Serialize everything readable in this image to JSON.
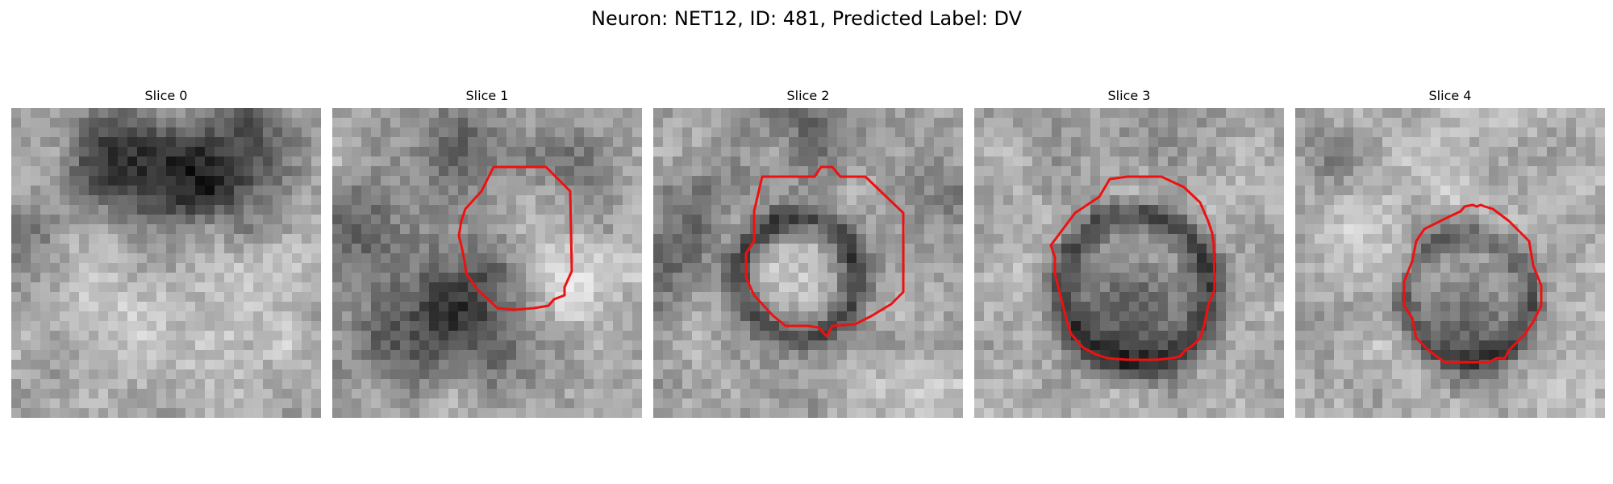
{
  "figure": {
    "title": "Neuron: NET12, ID: 481, Predicted Label: DV",
    "contour_color": "#ee1111"
  },
  "panels": [
    {
      "title": "Slice 0",
      "has_contour": false,
      "image": "grayscale-em-patch"
    },
    {
      "title": "Slice 1",
      "has_contour": true,
      "image": "grayscale-em-patch"
    },
    {
      "title": "Slice 2",
      "has_contour": true,
      "image": "grayscale-em-patch"
    },
    {
      "title": "Slice 3",
      "has_contour": true,
      "image": "grayscale-em-patch"
    },
    {
      "title": "Slice 4",
      "has_contour": true,
      "image": "grayscale-em-patch"
    }
  ]
}
